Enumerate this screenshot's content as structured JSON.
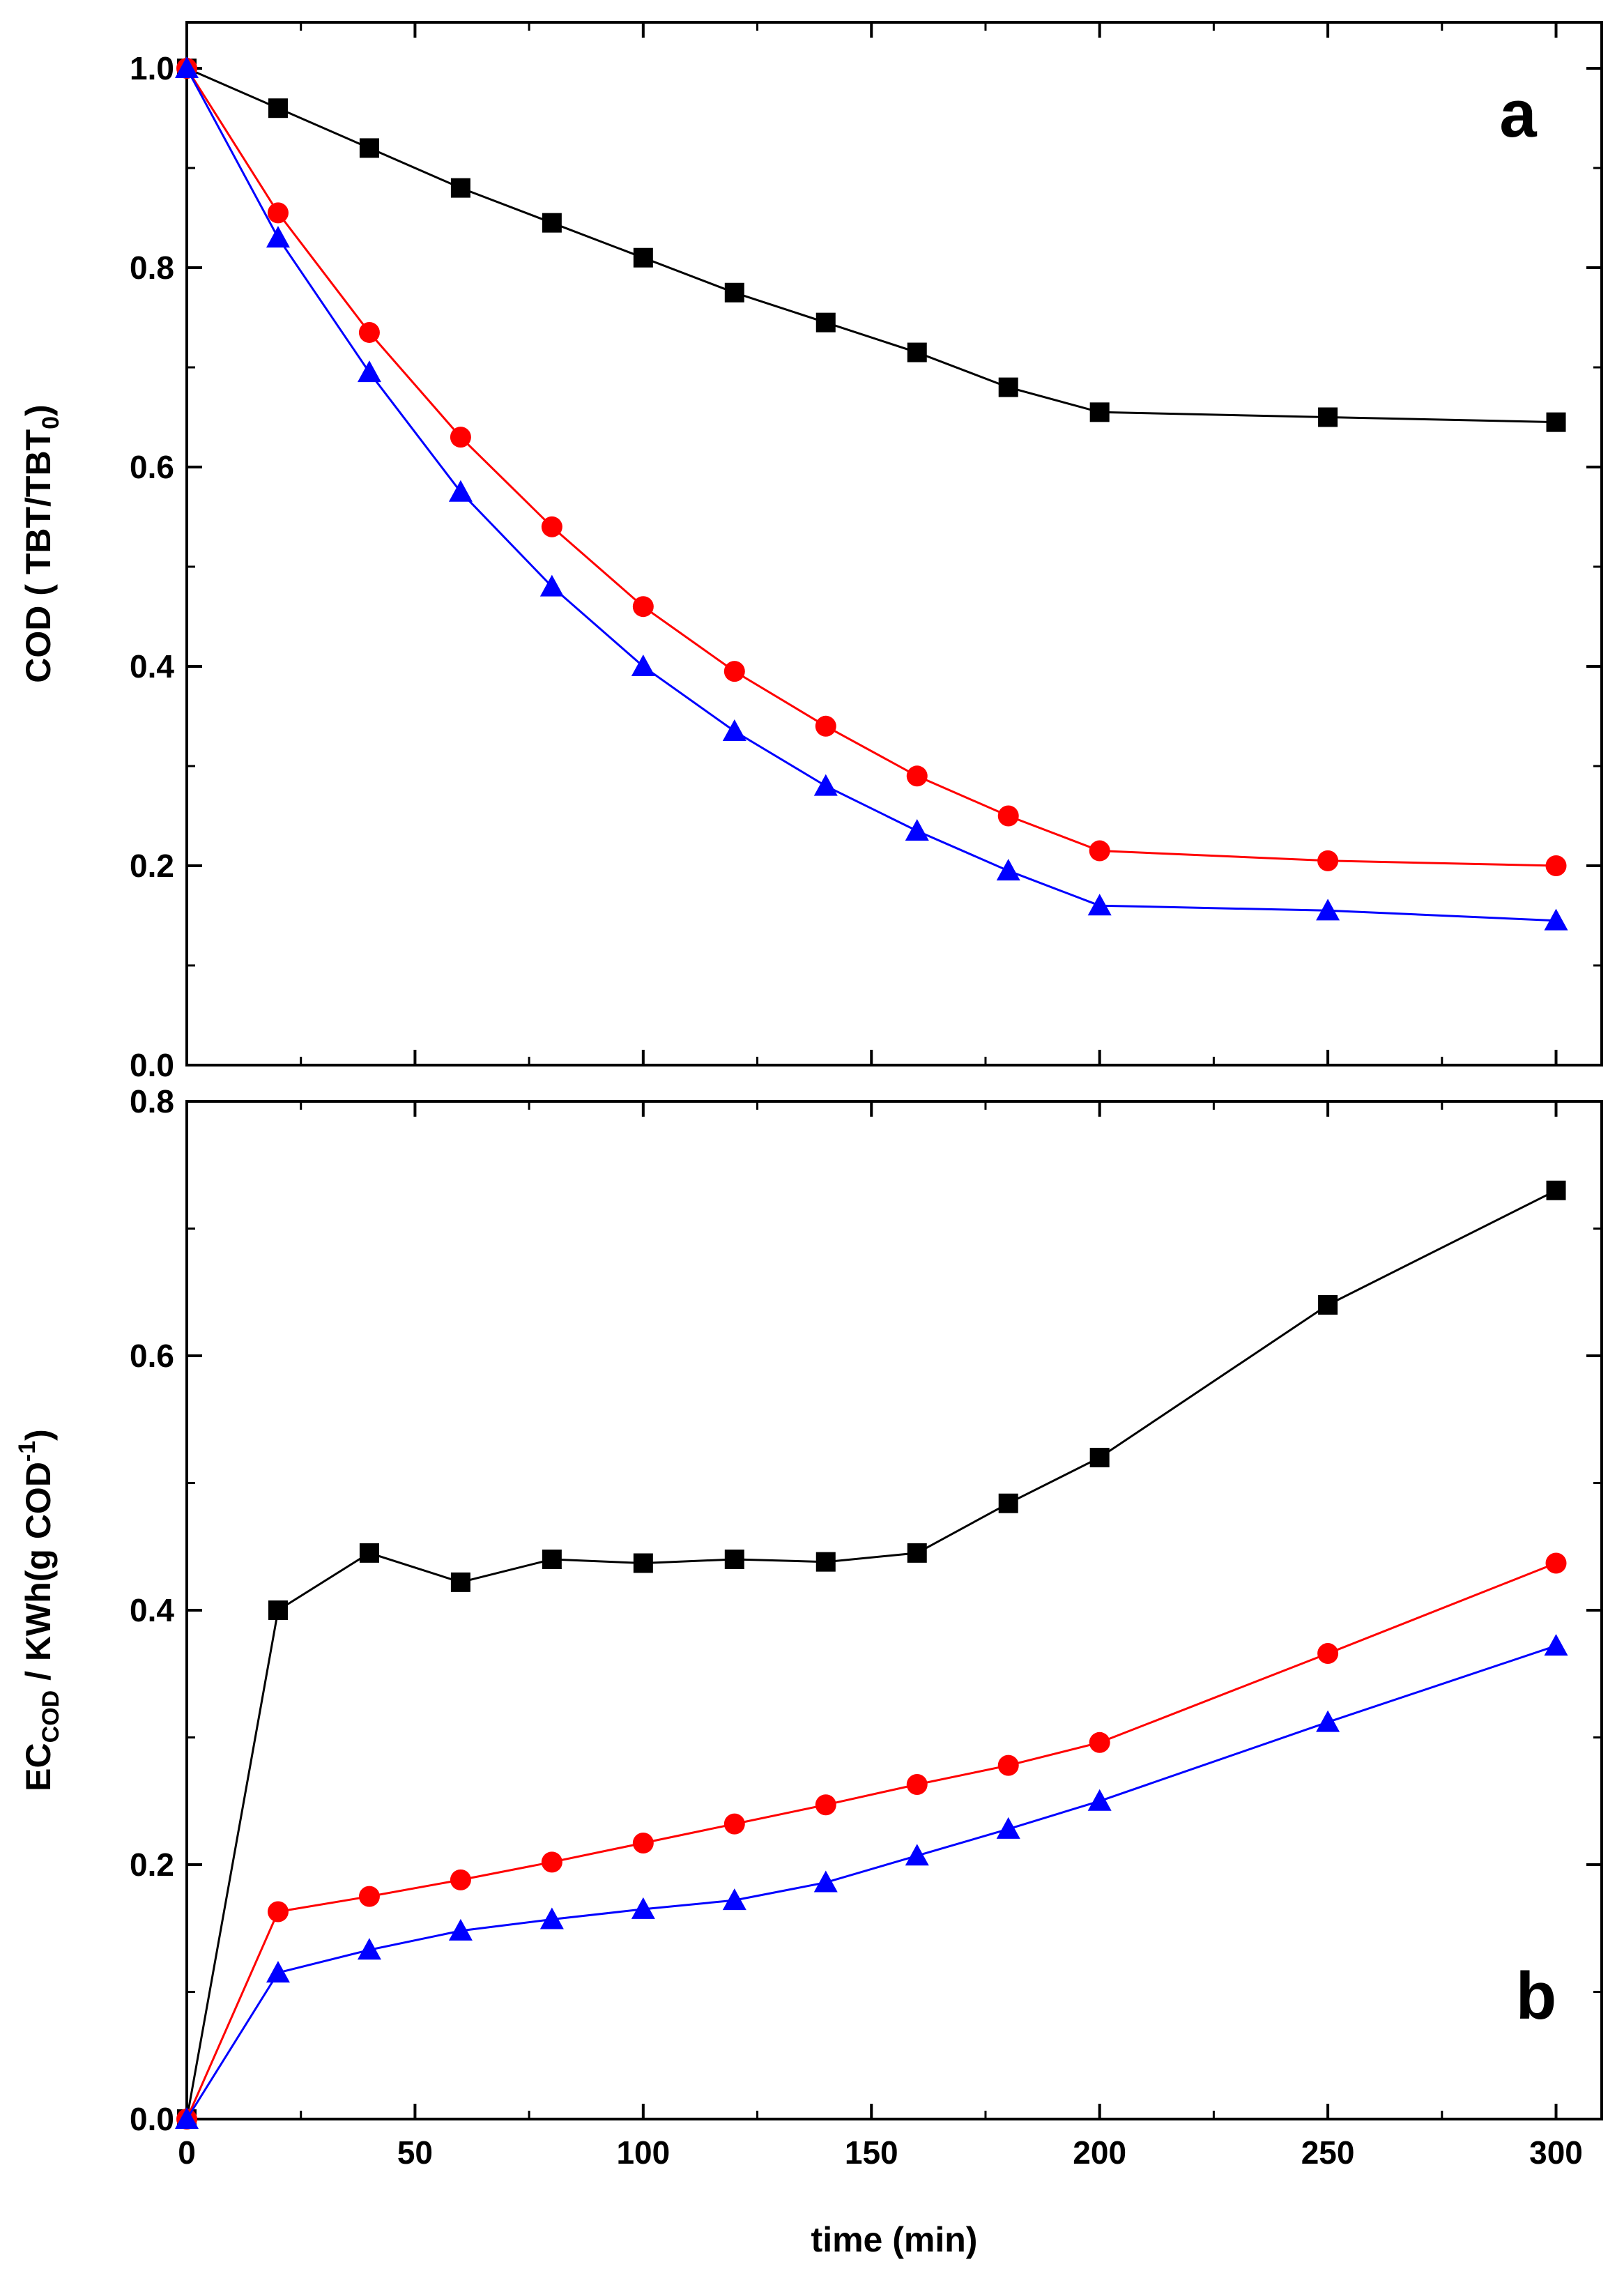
{
  "chart_data": [
    {
      "type": "line",
      "panel_label": "a",
      "title": "",
      "xlabel": "",
      "ylabel": {
        "main": "COD ( TBT/TBT",
        "sub": "0",
        "end": ")"
      },
      "xlim": [
        0,
        310
      ],
      "ylim": [
        0,
        1.0
      ],
      "x_ticks": [
        0,
        50,
        100,
        150,
        200,
        250,
        300
      ],
      "y_ticks": [
        0.0,
        0.2,
        0.4,
        0.6,
        0.8,
        1.0
      ],
      "y_tick_labels": [
        "0.0",
        "0.2",
        "0.4",
        "0.6",
        "0.8",
        "1.0"
      ],
      "grid": false,
      "series": [
        {
          "name": "black squares",
          "color": "#000000",
          "marker": "square",
          "x": [
            0,
            20,
            40,
            60,
            80,
            100,
            120,
            140,
            160,
            180,
            200,
            250,
            300
          ],
          "y": [
            1.0,
            0.96,
            0.92,
            0.88,
            0.845,
            0.81,
            0.775,
            0.745,
            0.715,
            0.68,
            0.655,
            0.65,
            0.645
          ]
        },
        {
          "name": "red circles",
          "color": "#ff0000",
          "marker": "circle",
          "x": [
            0,
            20,
            40,
            60,
            80,
            100,
            120,
            140,
            160,
            180,
            200,
            250,
            300
          ],
          "y": [
            1.0,
            0.855,
            0.735,
            0.63,
            0.54,
            0.46,
            0.395,
            0.34,
            0.29,
            0.25,
            0.215,
            0.205,
            0.2
          ]
        },
        {
          "name": "blue triangles",
          "color": "#0000ff",
          "marker": "triangle",
          "x": [
            0,
            20,
            40,
            60,
            80,
            100,
            120,
            140,
            160,
            180,
            200,
            250,
            300
          ],
          "y": [
            1.0,
            0.83,
            0.695,
            0.575,
            0.48,
            0.4,
            0.335,
            0.28,
            0.235,
            0.195,
            0.16,
            0.155,
            0.145
          ]
        }
      ]
    },
    {
      "type": "line",
      "panel_label": "b",
      "title": "",
      "xlabel": "time (min)",
      "ylabel": {
        "pre": "EC",
        "sub": "COD",
        "mid": " / KWh(g COD",
        "sup": "-1",
        "end": ")"
      },
      "xlim": [
        0,
        310
      ],
      "ylim": [
        0,
        0.8
      ],
      "x_ticks": [
        0,
        50,
        100,
        150,
        200,
        250,
        300
      ],
      "x_tick_labels": [
        "0",
        "50",
        "100",
        "150",
        "200",
        "250",
        "300"
      ],
      "y_ticks": [
        0.0,
        0.2,
        0.4,
        0.6,
        0.8
      ],
      "y_tick_labels": [
        "0.0",
        "0.2",
        "0.4",
        "0.6",
        "0.8"
      ],
      "grid": false,
      "series": [
        {
          "name": "black squares",
          "color": "#000000",
          "marker": "square",
          "x": [
            0,
            20,
            40,
            60,
            80,
            100,
            120,
            140,
            160,
            180,
            200,
            250,
            300
          ],
          "y": [
            0.0,
            0.4,
            0.445,
            0.422,
            0.44,
            0.437,
            0.44,
            0.438,
            0.445,
            0.484,
            0.52,
            0.64,
            0.73
          ]
        },
        {
          "name": "red circles",
          "color": "#ff0000",
          "marker": "circle",
          "x": [
            0,
            20,
            40,
            60,
            80,
            100,
            120,
            140,
            160,
            180,
            200,
            250,
            300
          ],
          "y": [
            0.0,
            0.163,
            0.175,
            0.188,
            0.202,
            0.217,
            0.232,
            0.247,
            0.263,
            0.278,
            0.296,
            0.366,
            0.437
          ]
        },
        {
          "name": "blue triangles",
          "color": "#0000ff",
          "marker": "triangle",
          "x": [
            0,
            20,
            40,
            60,
            80,
            100,
            120,
            140,
            160,
            180,
            200,
            250,
            300
          ],
          "y": [
            0.0,
            0.115,
            0.133,
            0.148,
            0.157,
            0.165,
            0.172,
            0.186,
            0.207,
            0.228,
            0.25,
            0.312,
            0.372
          ]
        }
      ]
    }
  ]
}
